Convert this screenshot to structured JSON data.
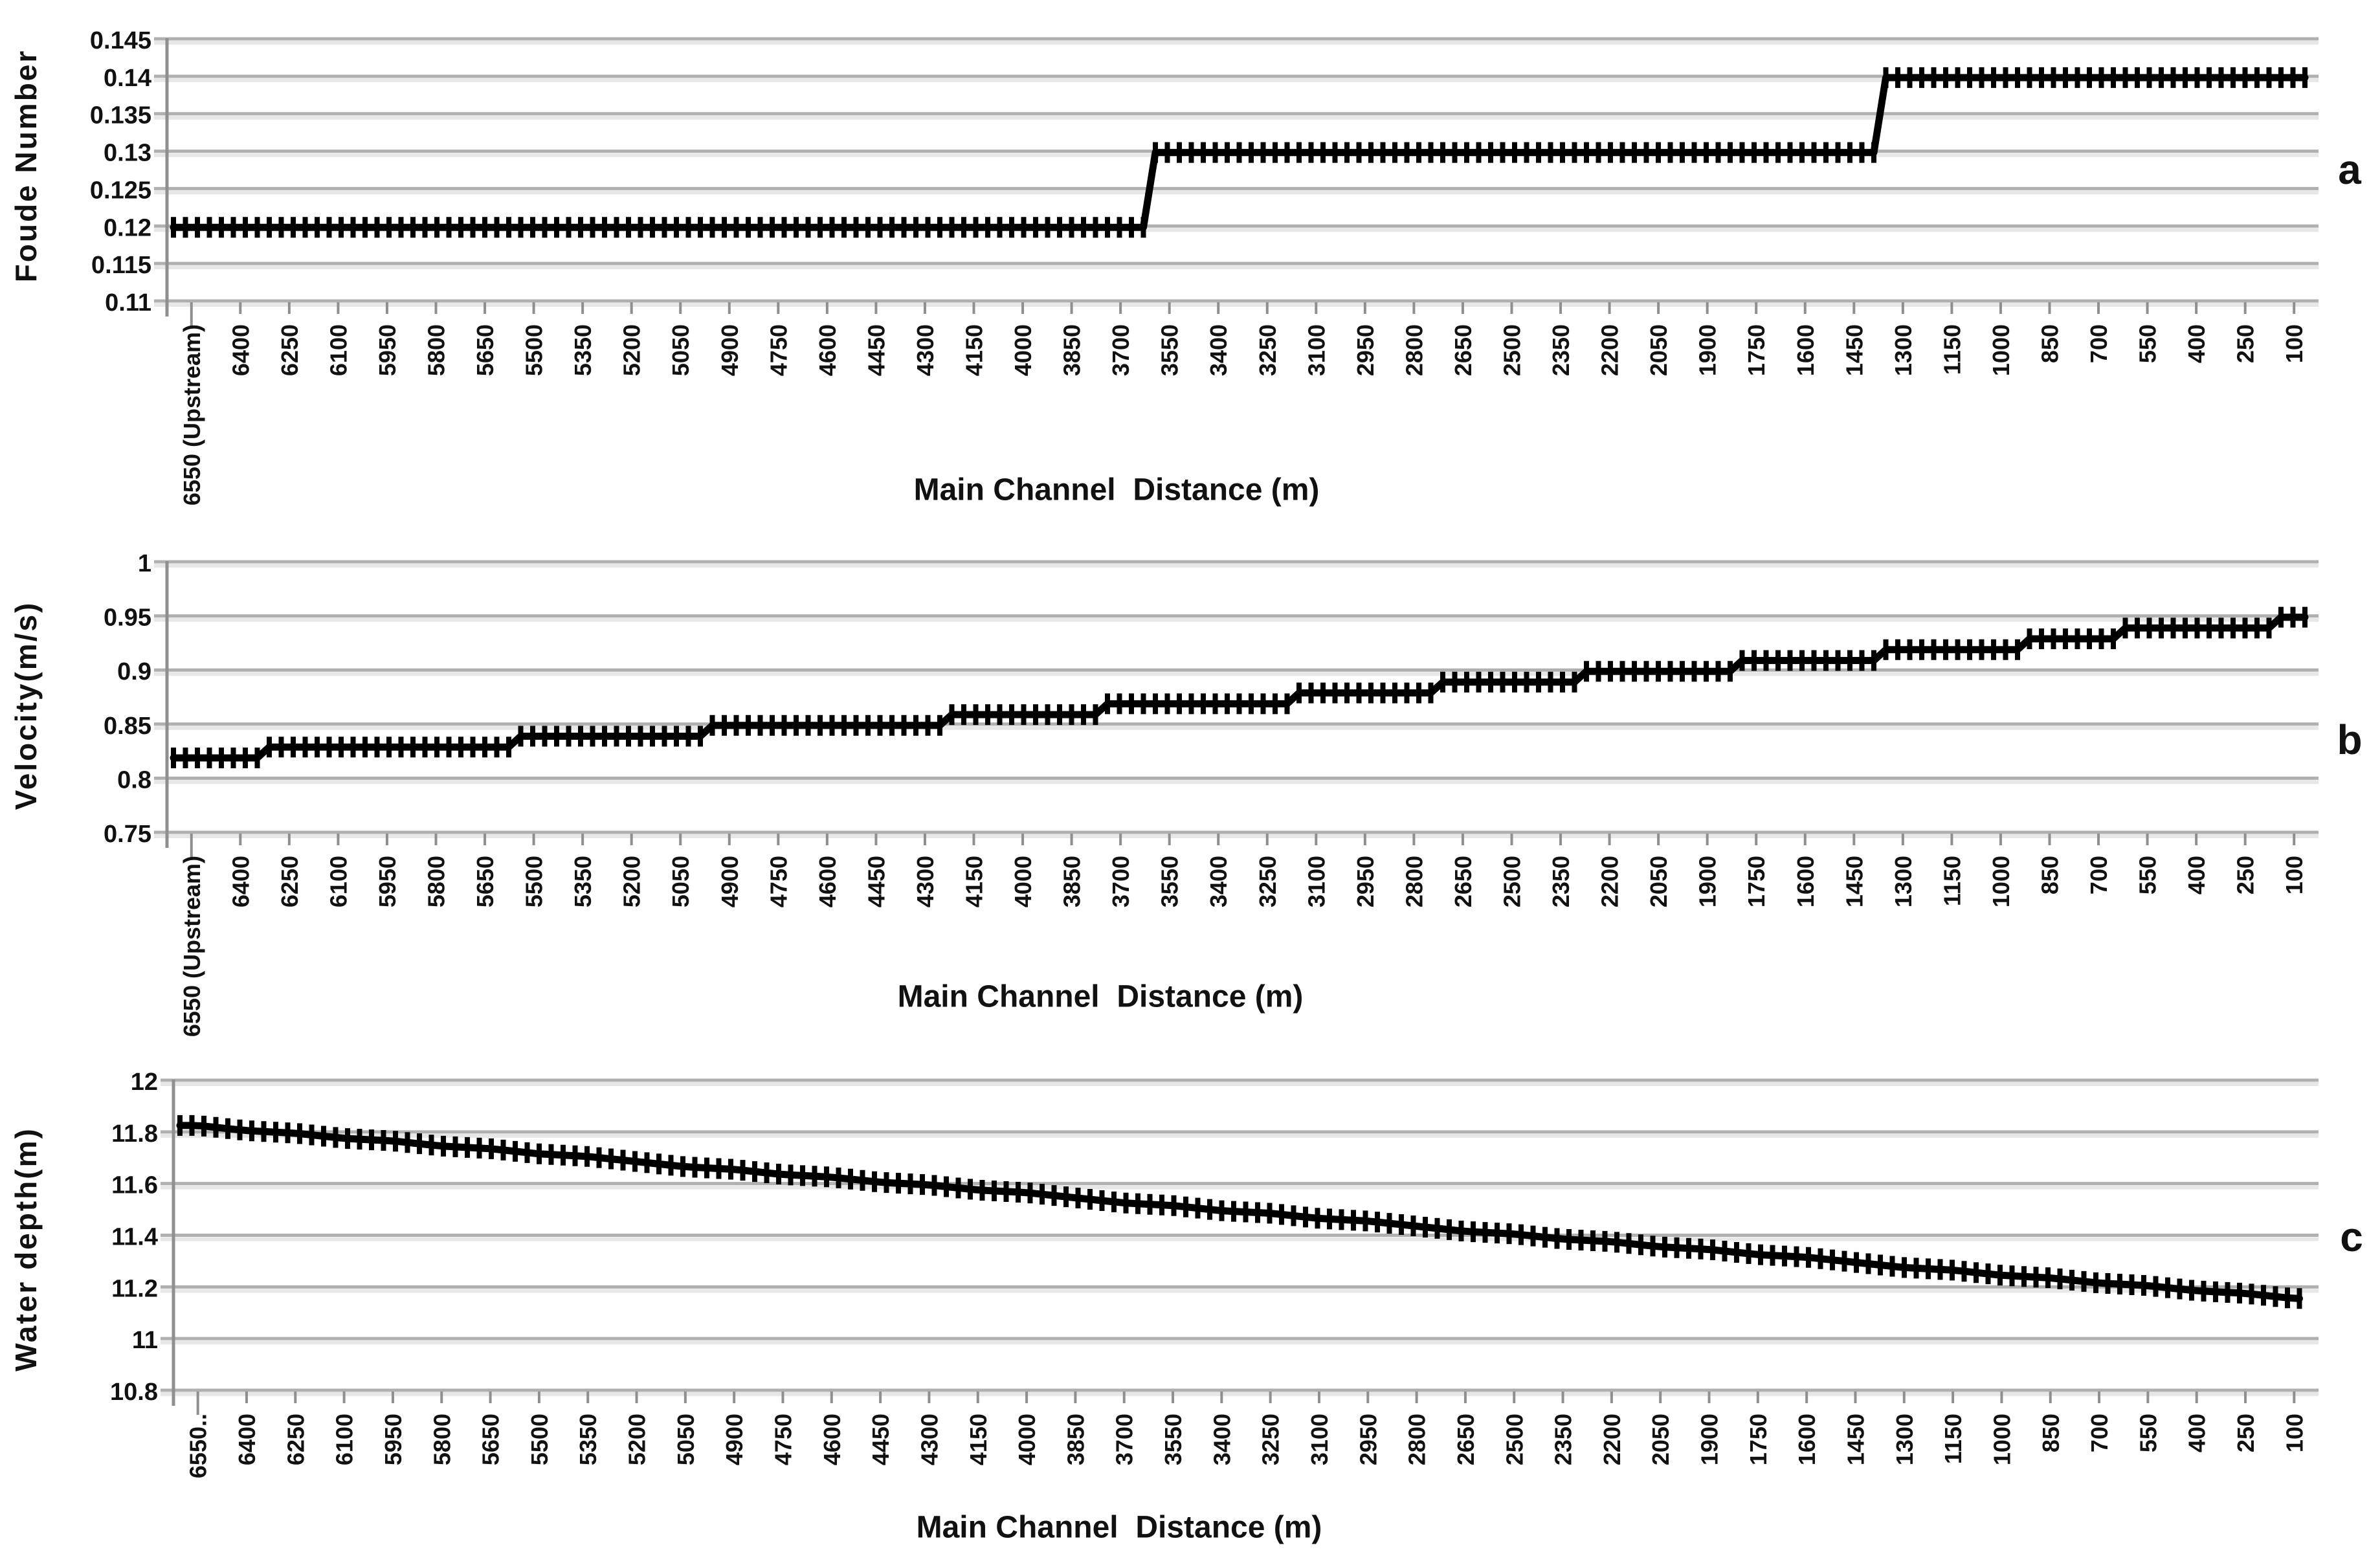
{
  "figure": {
    "background": "#ffffff",
    "text_color": "#111111",
    "gridline_color": "#b0b0b0",
    "gridline_shadow": "#e7e7e7",
    "axis_color": "#8f8f8f",
    "series_color": "#000000",
    "marker": "plus"
  },
  "chart_data": [
    {
      "panel": "a",
      "type": "line",
      "ylabel": "Foude Number",
      "xlabel": "Main Channel  Distance (m)",
      "grid": true,
      "legend": "none",
      "interp": "step",
      "ylim": [
        0.11,
        0.145
      ],
      "yticks": [
        0.145,
        0.14,
        0.135,
        0.13,
        0.125,
        0.12,
        0.115,
        0.11
      ],
      "categories": [
        "6550 (Upstream)",
        "6400",
        "6250",
        "6100",
        "5950",
        "5800",
        "5650",
        "5500",
        "5350",
        "5200",
        "5050",
        "4900",
        "4750",
        "4600",
        "4450",
        "4300",
        "4150",
        "4000",
        "3850",
        "3700",
        "3550",
        "3400",
        "3250",
        "3100",
        "2950",
        "2800",
        "2650",
        "2500",
        "2350",
        "2200",
        "2050",
        "1900",
        "1750",
        "1600",
        "1450",
        "1300",
        "1150",
        "1000",
        "850",
        "700",
        "550",
        "400",
        "250",
        "100"
      ],
      "values": [
        0.12,
        0.12,
        0.12,
        0.12,
        0.12,
        0.12,
        0.12,
        0.12,
        0.12,
        0.12,
        0.12,
        0.12,
        0.12,
        0.12,
        0.12,
        0.12,
        0.12,
        0.12,
        0.12,
        0.12,
        0.13,
        0.13,
        0.13,
        0.13,
        0.13,
        0.13,
        0.13,
        0.13,
        0.13,
        0.13,
        0.13,
        0.13,
        0.13,
        0.13,
        0.13,
        0.14,
        0.14,
        0.14,
        0.14,
        0.14,
        0.14,
        0.14,
        0.14,
        0.14
      ]
    },
    {
      "panel": "b",
      "type": "line",
      "ylabel": "Velocity(m/s)",
      "xlabel": "Main Channel  Distance (m)",
      "grid": true,
      "legend": "none",
      "interp": "step",
      "ylim": [
        0.75,
        1
      ],
      "yticks": [
        1,
        0.95,
        0.9,
        0.85,
        0.8,
        0.75
      ],
      "categories": [
        "6550 (Upstream)",
        "6400",
        "6250",
        "6100",
        "5950",
        "5800",
        "5650",
        "5500",
        "5350",
        "5200",
        "5050",
        "4900",
        "4750",
        "4600",
        "4450",
        "4300",
        "4150",
        "4000",
        "3850",
        "3700",
        "3550",
        "3400",
        "3250",
        "3100",
        "2950",
        "2800",
        "2650",
        "2500",
        "2350",
        "2200",
        "2050",
        "1900",
        "1750",
        "1600",
        "1450",
        "1300",
        "1150",
        "1000",
        "850",
        "700",
        "550",
        "400",
        "250",
        "100"
      ],
      "values": [
        0.82,
        0.82,
        0.83,
        0.83,
        0.83,
        0.83,
        0.83,
        0.84,
        0.84,
        0.84,
        0.84,
        0.85,
        0.85,
        0.85,
        0.85,
        0.85,
        0.86,
        0.86,
        0.86,
        0.87,
        0.87,
        0.87,
        0.87,
        0.88,
        0.88,
        0.88,
        0.89,
        0.89,
        0.89,
        0.9,
        0.9,
        0.9,
        0.91,
        0.91,
        0.91,
        0.92,
        0.92,
        0.92,
        0.93,
        0.93,
        0.94,
        0.94,
        0.94,
        0.95
      ]
    },
    {
      "panel": "c",
      "type": "line",
      "ylabel": "Water depth(m)",
      "xlabel": "Main Channel  Distance (m)",
      "grid": true,
      "legend": "none",
      "interp": "linear",
      "ylim": [
        10.8,
        12
      ],
      "yticks": [
        12,
        11.8,
        11.6,
        11.4,
        11.2,
        11,
        10.8
      ],
      "categories": [
        "6550..",
        "6400",
        "6250",
        "6100",
        "5950",
        "5800",
        "5650",
        "5500",
        "5350",
        "5200",
        "5050",
        "4900",
        "4750",
        "4600",
        "4450",
        "4300",
        "4150",
        "4000",
        "3850",
        "3700",
        "3550",
        "3400",
        "3250",
        "3100",
        "2950",
        "2800",
        "2650",
        "2500",
        "2350",
        "2200",
        "2050",
        "1900",
        "1750",
        "1600",
        "1450",
        "1300",
        "1150",
        "1000",
        "850",
        "700",
        "550",
        "400",
        "250",
        "100"
      ],
      "values": [
        11.83,
        11.81,
        11.8,
        11.78,
        11.77,
        11.75,
        11.74,
        11.72,
        11.71,
        11.69,
        11.67,
        11.66,
        11.64,
        11.63,
        11.61,
        11.6,
        11.58,
        11.57,
        11.55,
        11.53,
        11.52,
        11.5,
        11.49,
        11.47,
        11.46,
        11.44,
        11.42,
        11.41,
        11.39,
        11.38,
        11.36,
        11.35,
        11.33,
        11.32,
        11.3,
        11.28,
        11.27,
        11.25,
        11.24,
        11.22,
        11.21,
        11.19,
        11.18,
        11.16
      ]
    }
  ]
}
